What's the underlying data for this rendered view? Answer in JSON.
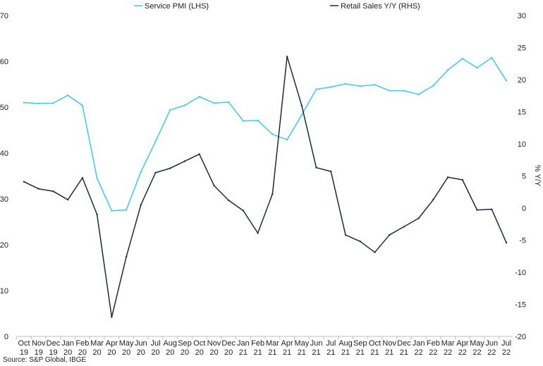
{
  "chart_data": {
    "type": "line",
    "title": "",
    "categories": [
      [
        "Oct",
        "19"
      ],
      [
        "Nov",
        "19"
      ],
      [
        "Dec",
        "19"
      ],
      [
        "Jan",
        "20"
      ],
      [
        "Feb",
        "20"
      ],
      [
        "Mar",
        "20"
      ],
      [
        "Apr",
        "20"
      ],
      [
        "May",
        "20"
      ],
      [
        "Jun",
        "20"
      ],
      [
        "Jul",
        "20"
      ],
      [
        "Aug",
        "20"
      ],
      [
        "Sep",
        "20"
      ],
      [
        "Oct",
        "20"
      ],
      [
        "Nov",
        "20"
      ],
      [
        "Dec",
        "20"
      ],
      [
        "Jan",
        "21"
      ],
      [
        "Feb",
        "21"
      ],
      [
        "Mar",
        "21"
      ],
      [
        "Apr",
        "21"
      ],
      [
        "May",
        "21"
      ],
      [
        "Jun",
        "21"
      ],
      [
        "Jul",
        "21"
      ],
      [
        "Aug",
        "21"
      ],
      [
        "Sep",
        "21"
      ],
      [
        "Oct",
        "21"
      ],
      [
        "Nov",
        "21"
      ],
      [
        "Dec",
        "21"
      ],
      [
        "Jan",
        "22"
      ],
      [
        "Feb",
        "22"
      ],
      [
        "Mar",
        "22"
      ],
      [
        "Apr",
        "22"
      ],
      [
        "May",
        "22"
      ],
      [
        "Jun",
        "22"
      ],
      [
        "Jul",
        "22"
      ]
    ],
    "left_axis": {
      "ylim": [
        0,
        70
      ],
      "ticks": [
        "0",
        "10",
        "20",
        "30",
        "40",
        "50",
        "60",
        "70"
      ],
      "label": ""
    },
    "right_axis": {
      "ylim": [
        -20,
        30
      ],
      "ticks": [
        "-20",
        "-15",
        "-10",
        "-5",
        "0",
        "5",
        "10",
        "15",
        "20",
        "25",
        "30"
      ],
      "label": "% Y/Y"
    },
    "series": [
      {
        "name": "Service PMI (LHS)",
        "axis": "left",
        "color": "#3ccbea",
        "values": [
          51.0,
          50.8,
          50.9,
          52.6,
          50.4,
          34.5,
          27.4,
          27.6,
          35.9,
          42.5,
          49.4,
          50.4,
          52.3,
          50.9,
          51.1,
          47.0,
          47.1,
          44.1,
          42.9,
          48.3,
          53.9,
          54.4,
          55.1,
          54.6,
          54.9,
          53.6,
          53.6,
          52.8,
          54.7,
          58.1,
          60.6,
          58.6,
          60.8,
          55.8
        ]
      },
      {
        "name": "Retail Sales Y/Y (RHS)",
        "axis": "right",
        "color": "#1b2a4a",
        "values": [
          4.1,
          3.0,
          2.6,
          1.3,
          4.7,
          -1.0,
          -17.0,
          -7.6,
          0.5,
          5.5,
          6.2,
          7.3,
          8.4,
          3.5,
          1.2,
          -0.4,
          -3.9,
          2.2,
          23.6,
          16.0,
          6.3,
          5.7,
          -4.2,
          -5.2,
          -6.9,
          -4.2,
          -2.9,
          -1.6,
          1.3,
          4.8,
          4.4,
          -0.3,
          -0.2,
          -5.4
        ]
      }
    ]
  },
  "source": "Source: S&P Global, IBGE"
}
